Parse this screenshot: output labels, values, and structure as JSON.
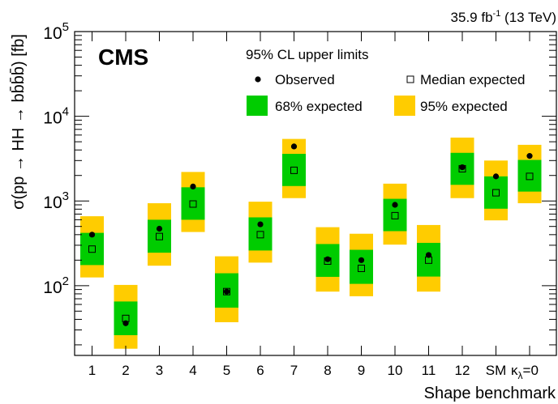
{
  "chart_data": {
    "type": "scatter",
    "lumi_label": "35.9 fb",
    "lumi_sup": "-1",
    "lumi_rest": " (13 TeV)",
    "cms_label": "CMS",
    "ylabel": "σ(pp → HH → bb̄b̄b̄) [fb]",
    "xlabel": "Shape benchmark",
    "ylog": true,
    "ylim": [
      15,
      100000
    ],
    "y_ticks": [
      {
        "value": 100,
        "base": "10",
        "exp": "2"
      },
      {
        "value": 1000,
        "base": "10",
        "exp": "3"
      },
      {
        "value": 10000,
        "base": "10",
        "exp": "4"
      },
      {
        "value": 100000,
        "base": "10",
        "exp": "5"
      }
    ],
    "categories": [
      "1",
      "2",
      "3",
      "4",
      "5",
      "6",
      "7",
      "8",
      "9",
      "10",
      "11",
      "12",
      "SM",
      "κλ=0"
    ],
    "category_display": [
      {
        "main": "1"
      },
      {
        "main": "2"
      },
      {
        "main": "3"
      },
      {
        "main": "4"
      },
      {
        "main": "5"
      },
      {
        "main": "6"
      },
      {
        "main": "7"
      },
      {
        "main": "8"
      },
      {
        "main": "9"
      },
      {
        "main": "10"
      },
      {
        "main": "11"
      },
      {
        "main": "12"
      },
      {
        "main": "SM"
      },
      {
        "main": "κ",
        "sub": "λ",
        "tail": "=0"
      }
    ],
    "legend": {
      "title": "95% CL upper limits",
      "observed": "Observed",
      "expected": "Median expected",
      "band68": "68% expected",
      "band95": "95% expected"
    },
    "colors": {
      "band68": "#00cc00",
      "band95": "#ffcc00",
      "marker": "#000000"
    },
    "observed": [
      400,
      36,
      470,
      1480,
      85,
      530,
      4400,
      205,
      200,
      900,
      230,
      2500,
      1950,
      3400
    ],
    "expected": [
      270,
      41,
      380,
      920,
      85,
      400,
      2300,
      195,
      160,
      670,
      200,
      2400,
      1250,
      1950
    ],
    "band68": [
      [
        175,
        420
      ],
      [
        26,
        65
      ],
      [
        245,
        600
      ],
      [
        600,
        1450
      ],
      [
        55,
        140
      ],
      [
        260,
        640
      ],
      [
        1500,
        3600
      ],
      [
        127,
        310
      ],
      [
        105,
        265
      ],
      [
        440,
        1060
      ],
      [
        128,
        320
      ],
      [
        1550,
        3700
      ],
      [
        810,
        1950
      ],
      [
        1290,
        3050
      ]
    ],
    "band95": [
      [
        125,
        660
      ],
      [
        18,
        102
      ],
      [
        172,
        940
      ],
      [
        430,
        2200
      ],
      [
        37,
        222
      ],
      [
        187,
        980
      ],
      [
        1080,
        5400
      ],
      [
        85,
        490
      ],
      [
        75,
        410
      ],
      [
        305,
        1600
      ],
      [
        85,
        520
      ],
      [
        1080,
        5600
      ],
      [
        590,
        3000
      ],
      [
        940,
        4600
      ]
    ]
  }
}
